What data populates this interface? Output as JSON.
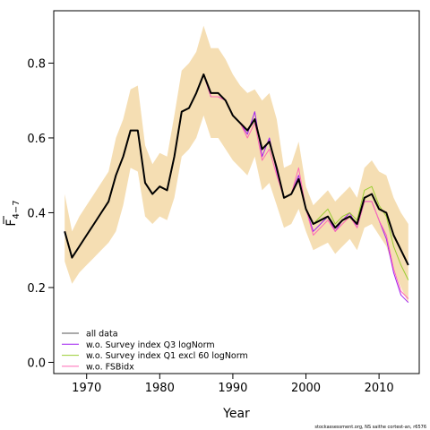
{
  "chart_data": {
    "type": "line",
    "xlabel": "Year",
    "ylabel_main": "F",
    "ylabel_sub": "4−7",
    "xlim": [
      1965.5,
      2015.5
    ],
    "ylim": [
      -0.03,
      0.94
    ],
    "xticks": [
      1970,
      1980,
      1990,
      2000,
      2010
    ],
    "yticks": [
      0.0,
      0.2,
      0.4,
      0.6,
      0.8
    ],
    "ytick_labels": [
      "0.0",
      "0.2",
      "0.4",
      "0.6",
      "0.8"
    ],
    "xtick_labels": [
      "1970",
      "1980",
      "1990",
      "2000",
      "2010"
    ],
    "x": [
      1967,
      1968,
      1969,
      1970,
      1971,
      1972,
      1973,
      1974,
      1975,
      1976,
      1977,
      1978,
      1979,
      1980,
      1981,
      1982,
      1983,
      1984,
      1985,
      1986,
      1987,
      1988,
      1989,
      1990,
      1991,
      1992,
      1993,
      1994,
      1995,
      1996,
      1997,
      1998,
      1999,
      2000,
      2001,
      2002,
      2003,
      2004,
      2005,
      2006,
      2007,
      2008,
      2009,
      2010,
      2011,
      2012,
      2013,
      2014
    ],
    "band": {
      "color": "#f5deb3",
      "upper": [
        0.45,
        0.35,
        0.39,
        0.42,
        0.45,
        0.48,
        0.51,
        0.6,
        0.65,
        0.73,
        0.74,
        0.58,
        0.53,
        0.56,
        0.55,
        0.66,
        0.78,
        0.8,
        0.83,
        0.9,
        0.84,
        0.84,
        0.81,
        0.77,
        0.74,
        0.72,
        0.73,
        0.7,
        0.72,
        0.65,
        0.52,
        0.53,
        0.59,
        0.47,
        0.42,
        0.44,
        0.46,
        0.43,
        0.45,
        0.47,
        0.44,
        0.52,
        0.54,
        0.51,
        0.5,
        0.44,
        0.4,
        0.37
      ],
      "lower": [
        0.27,
        0.21,
        0.24,
        0.26,
        0.28,
        0.3,
        0.32,
        0.35,
        0.42,
        0.52,
        0.51,
        0.39,
        0.37,
        0.39,
        0.38,
        0.44,
        0.55,
        0.57,
        0.6,
        0.66,
        0.6,
        0.6,
        0.57,
        0.54,
        0.52,
        0.5,
        0.55,
        0.46,
        0.48,
        0.42,
        0.36,
        0.37,
        0.41,
        0.35,
        0.3,
        0.31,
        0.32,
        0.29,
        0.31,
        0.33,
        0.3,
        0.36,
        0.37,
        0.34,
        0.31,
        0.25,
        0.2,
        0.16
      ]
    },
    "series": [
      {
        "name": "all data",
        "color": "#000000",
        "width": 2,
        "values": [
          0.35,
          0.28,
          0.31,
          0.34,
          0.37,
          0.4,
          0.43,
          0.5,
          0.55,
          0.62,
          0.62,
          0.48,
          0.45,
          0.47,
          0.46,
          0.55,
          0.67,
          0.68,
          0.72,
          0.77,
          0.72,
          0.72,
          0.7,
          0.66,
          0.64,
          0.62,
          0.65,
          0.57,
          0.59,
          0.52,
          0.44,
          0.45,
          0.49,
          0.41,
          0.37,
          0.38,
          0.39,
          0.36,
          0.38,
          0.39,
          0.37,
          0.44,
          0.45,
          0.41,
          0.4,
          0.34,
          0.3,
          0.26
        ]
      },
      {
        "name": "w.o. Survey index Q3 logNorm",
        "color": "#a020f0",
        "width": 1,
        "values": [
          0.35,
          0.28,
          0.31,
          0.34,
          0.37,
          0.4,
          0.43,
          0.5,
          0.55,
          0.62,
          0.62,
          0.48,
          0.45,
          0.47,
          0.46,
          0.55,
          0.67,
          0.68,
          0.72,
          0.77,
          0.71,
          0.71,
          0.7,
          0.66,
          0.64,
          0.61,
          0.67,
          0.55,
          0.6,
          0.51,
          0.44,
          0.45,
          0.5,
          0.41,
          0.35,
          0.37,
          0.39,
          0.35,
          0.38,
          0.4,
          0.36,
          0.43,
          0.43,
          0.38,
          0.33,
          0.24,
          0.18,
          0.16
        ]
      },
      {
        "name": "w.o. Survey index Q1 excl 60 logNorm",
        "color": "#9acd32",
        "width": 1,
        "values": [
          0.35,
          0.28,
          0.31,
          0.34,
          0.37,
          0.4,
          0.43,
          0.5,
          0.55,
          0.62,
          0.62,
          0.48,
          0.45,
          0.47,
          0.46,
          0.55,
          0.67,
          0.68,
          0.72,
          0.77,
          0.72,
          0.72,
          0.7,
          0.66,
          0.64,
          0.62,
          0.65,
          0.57,
          0.59,
          0.52,
          0.44,
          0.45,
          0.49,
          0.41,
          0.37,
          0.39,
          0.41,
          0.37,
          0.39,
          0.4,
          0.38,
          0.46,
          0.47,
          0.42,
          0.39,
          0.31,
          0.26,
          0.22
        ]
      },
      {
        "name": "w.o. FSBidx",
        "color": "#ff69b4",
        "width": 1,
        "values": [
          0.35,
          0.28,
          0.31,
          0.34,
          0.37,
          0.4,
          0.43,
          0.5,
          0.55,
          0.62,
          0.62,
          0.48,
          0.45,
          0.47,
          0.46,
          0.55,
          0.67,
          0.68,
          0.72,
          0.77,
          0.71,
          0.71,
          0.7,
          0.66,
          0.64,
          0.6,
          0.64,
          0.54,
          0.57,
          0.5,
          0.44,
          0.45,
          0.52,
          0.41,
          0.34,
          0.36,
          0.38,
          0.35,
          0.37,
          0.39,
          0.36,
          0.43,
          0.43,
          0.38,
          0.34,
          0.25,
          0.19,
          0.17
        ]
      }
    ],
    "legend_position": "bottom-left",
    "grid": false
  },
  "footer": "stockassessment.org, NS saithe cortest-an, r6576"
}
